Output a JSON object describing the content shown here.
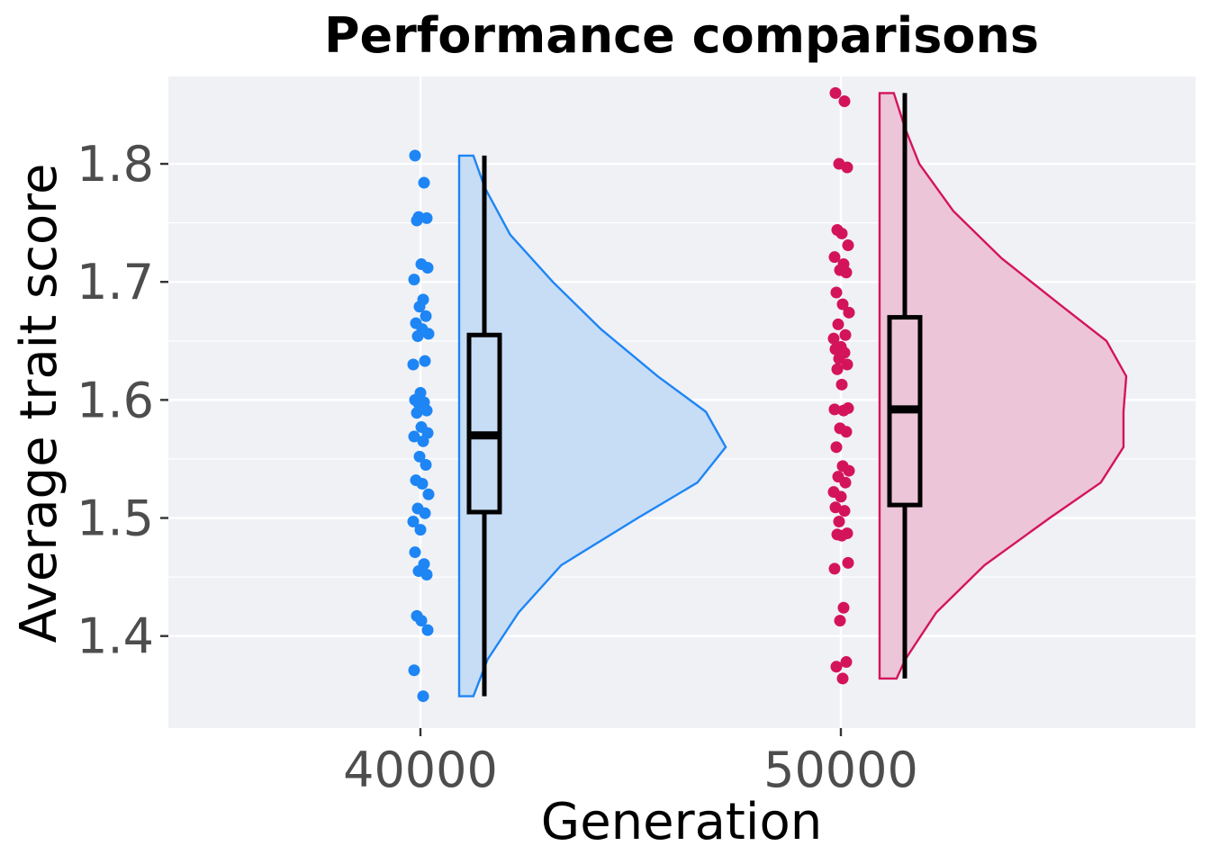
{
  "chart_data": {
    "type": "raincloud",
    "title": "Performance comparisons",
    "xlabel": "Generation",
    "ylabel": "Average trait score",
    "ylim": [
      1.322,
      1.874
    ],
    "y_ticks": [
      "1.4",
      "1.5",
      "1.6",
      "1.7",
      "1.8"
    ],
    "grid": true,
    "legend": "none",
    "background": "#eff1f5",
    "groups": [
      {
        "label": "40000",
        "color": "#1e85f5",
        "fill": "#c7ddf5",
        "box": {
          "min": 1.349,
          "q1": 1.505,
          "median": 1.57,
          "q3": 1.655,
          "max": 1.807
        },
        "density": [
          [
            1.349,
            0.05
          ],
          [
            1.38,
            0.1
          ],
          [
            1.42,
            0.21
          ],
          [
            1.46,
            0.36
          ],
          [
            1.5,
            0.63
          ],
          [
            1.53,
            0.84
          ],
          [
            1.56,
            0.94
          ],
          [
            1.59,
            0.87
          ],
          [
            1.62,
            0.7
          ],
          [
            1.66,
            0.5
          ],
          [
            1.7,
            0.33
          ],
          [
            1.74,
            0.18
          ],
          [
            1.78,
            0.09
          ],
          [
            1.807,
            0.05
          ]
        ],
        "points": [
          1.807,
          1.784,
          1.755,
          1.754,
          1.752,
          1.715,
          1.712,
          1.702,
          1.685,
          1.679,
          1.671,
          1.665,
          1.66,
          1.656,
          1.654,
          1.633,
          1.63,
          1.606,
          1.6,
          1.598,
          1.597,
          1.591,
          1.589,
          1.577,
          1.572,
          1.569,
          1.565,
          1.552,
          1.545,
          1.532,
          1.529,
          1.52,
          1.508,
          1.504,
          1.497,
          1.49,
          1.471,
          1.461,
          1.455,
          1.452,
          1.417,
          1.413,
          1.405,
          1.371,
          1.349
        ]
      },
      {
        "label": "50000",
        "color": "#d4145a",
        "fill": "#ecc5d8",
        "box": {
          "min": 1.364,
          "q1": 1.511,
          "median": 1.592,
          "q3": 1.67,
          "max": 1.86
        },
        "density": [
          [
            1.364,
            0.06
          ],
          [
            1.38,
            0.09
          ],
          [
            1.42,
            0.2
          ],
          [
            1.46,
            0.37
          ],
          [
            1.5,
            0.6
          ],
          [
            1.53,
            0.78
          ],
          [
            1.56,
            0.86
          ],
          [
            1.59,
            0.86
          ],
          [
            1.62,
            0.87
          ],
          [
            1.65,
            0.8
          ],
          [
            1.68,
            0.64
          ],
          [
            1.72,
            0.43
          ],
          [
            1.76,
            0.26
          ],
          [
            1.8,
            0.14
          ],
          [
            1.83,
            0.09
          ],
          [
            1.86,
            0.05
          ]
        ],
        "points": [
          1.86,
          1.853,
          1.8,
          1.797,
          1.744,
          1.741,
          1.731,
          1.721,
          1.715,
          1.71,
          1.708,
          1.691,
          1.681,
          1.674,
          1.664,
          1.655,
          1.652,
          1.645,
          1.643,
          1.64,
          1.635,
          1.63,
          1.626,
          1.613,
          1.593,
          1.592,
          1.591,
          1.576,
          1.573,
          1.56,
          1.544,
          1.54,
          1.535,
          1.53,
          1.522,
          1.518,
          1.509,
          1.506,
          1.497,
          1.487,
          1.486,
          1.485,
          1.462,
          1.457,
          1.424,
          1.413,
          1.378,
          1.374,
          1.364
        ]
      }
    ]
  }
}
